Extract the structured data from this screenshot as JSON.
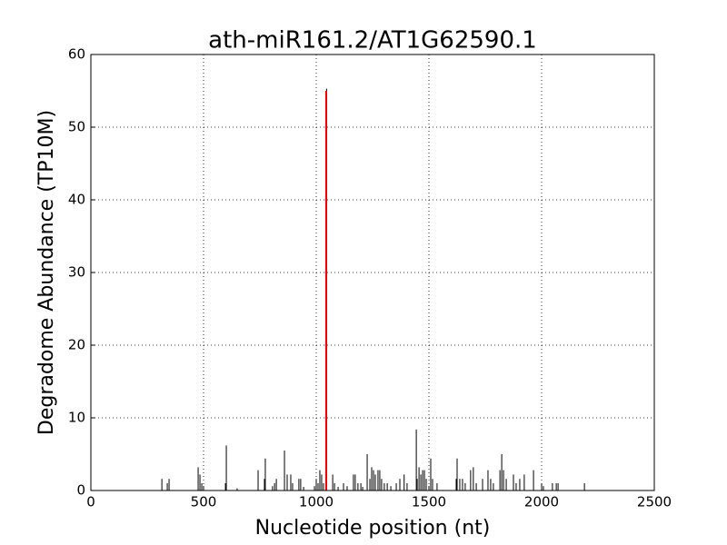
{
  "chart_data": {
    "type": "vlines",
    "title": "ath-miR161.2/AT1G62590.1",
    "xlabel": "Nucleotide position (nt)",
    "ylabel": "Degradome Abundance (TP10M)",
    "xlim": [
      0,
      2500
    ],
    "xticks": [
      0,
      500,
      1000,
      1500,
      2000,
      2500
    ],
    "ylim": [
      0,
      60
    ],
    "yticks": [
      0,
      10,
      20,
      30,
      40,
      50,
      60
    ],
    "grid": true,
    "series": [
      {
        "color": "#000000",
        "x": [
          315,
          339,
          347,
          476,
          484,
          492,
          597,
          601,
          649,
          742,
          770,
          774,
          806,
          815,
          823,
          859,
          871,
          887,
          895,
          923,
          931,
          944,
          992,
          1000,
          1008,
          1016,
          1024,
          1032,
          1046,
          1073,
          1081,
          1097,
          1121,
          1137,
          1165,
          1173,
          1185,
          1198,
          1206,
          1226,
          1238,
          1246,
          1254,
          1262,
          1274,
          1282,
          1290,
          1302,
          1315,
          1331,
          1355,
          1371,
          1390,
          1403,
          1444,
          1448,
          1456,
          1464,
          1472,
          1480,
          1488,
          1508,
          1516,
          1536,
          1621,
          1625,
          1637,
          1649,
          1661,
          1685,
          1697,
          1710,
          1738,
          1762,
          1774,
          1786,
          1815,
          1823,
          1831,
          1843,
          1875,
          1887,
          1903,
          1923,
          1964,
          2000,
          2008,
          2048,
          2065,
          2073,
          2190
        ],
        "values": [
          1.6,
          1.0,
          1.6,
          3.2,
          2.2,
          1.0,
          1.0,
          6.2,
          0.3,
          2.8,
          1.6,
          4.4,
          0.6,
          1.0,
          1.6,
          5.5,
          2.2,
          2.2,
          1.0,
          1.6,
          1.6,
          0.5,
          0.6,
          1.6,
          1.0,
          2.8,
          2.2,
          1.0,
          55.3,
          2.2,
          1.0,
          0.5,
          1.0,
          0.6,
          2.2,
          2.2,
          1.0,
          1.0,
          0.5,
          5.0,
          1.6,
          3.2,
          2.8,
          2.2,
          2.8,
          2.8,
          1.6,
          1.0,
          1.0,
          0.6,
          1.0,
          1.6,
          2.2,
          1.0,
          8.4,
          1.6,
          3.2,
          2.2,
          2.8,
          2.8,
          1.6,
          4.4,
          1.6,
          1.0,
          1.6,
          4.4,
          1.6,
          1.6,
          1.0,
          2.8,
          3.2,
          1.0,
          1.6,
          2.8,
          1.6,
          1.0,
          2.8,
          5.0,
          2.8,
          1.6,
          2.2,
          1.0,
          1.6,
          2.2,
          2.8,
          1.0,
          0.6,
          1.0,
          1.0,
          1.0,
          1.0
        ]
      },
      {
        "color": "#ff0000",
        "x": [
          1044
        ],
        "values": [
          55
        ]
      }
    ]
  }
}
